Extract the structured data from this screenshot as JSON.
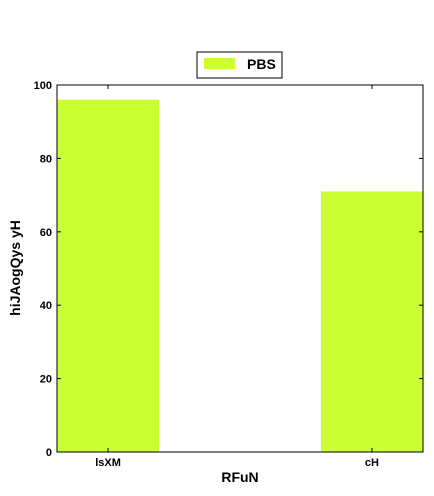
{
  "chart_data": {
    "type": "bar",
    "categories": [
      "lsXM",
      "cH"
    ],
    "series": [
      {
        "name": "PBS",
        "values": [
          96,
          71
        ]
      }
    ],
    "xlabel": "RFuN",
    "ylabel": "hiJAogQys yH",
    "ylim": [
      0,
      100
    ],
    "yticks": [
      0,
      20,
      40,
      60,
      80,
      100
    ],
    "grid": false,
    "legend_position": "top-center",
    "colors": {
      "bar": "#ccff33",
      "axis": "#000000"
    }
  }
}
